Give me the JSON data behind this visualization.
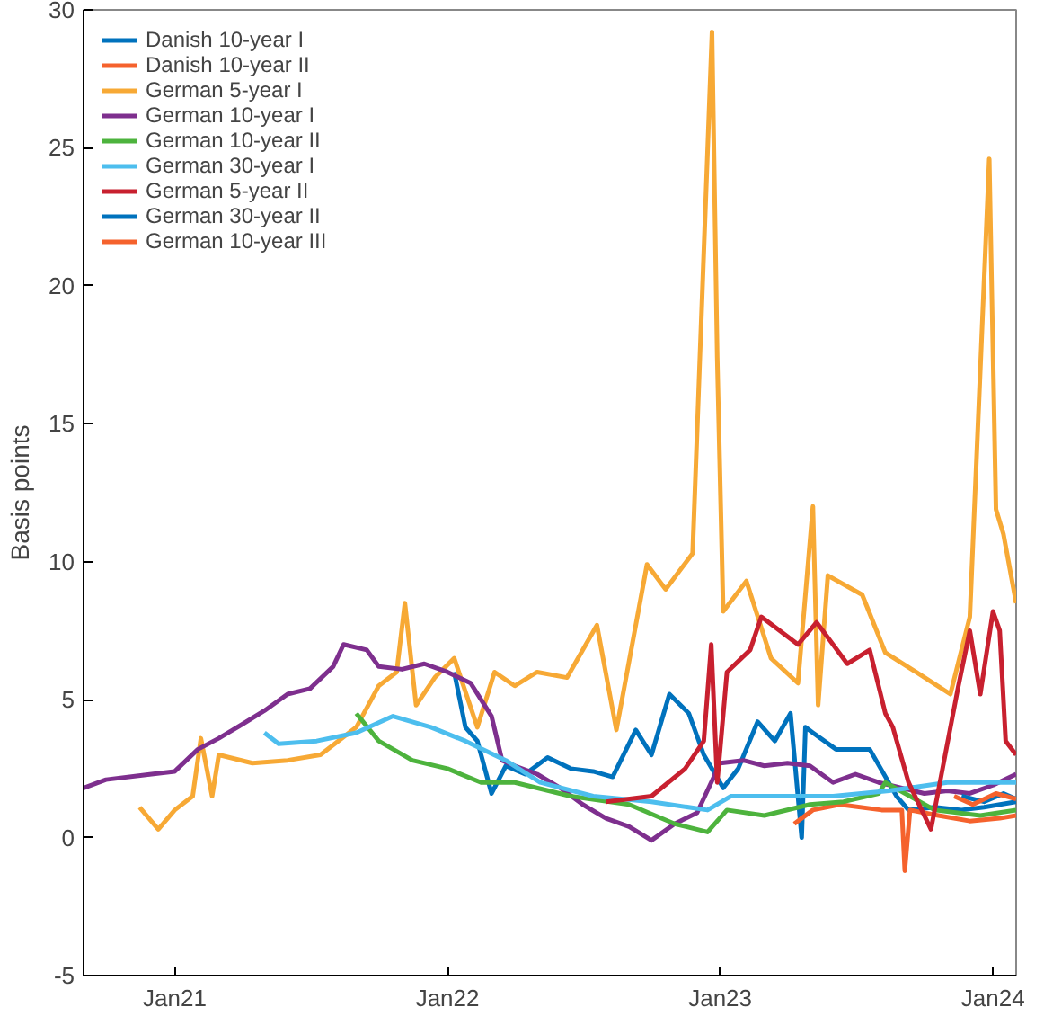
{
  "chart_data": {
    "type": "line",
    "ylabel": "Basis points",
    "xlim": [
      "2020-09-01",
      "2024-02-01"
    ],
    "ylim": [
      -5,
      30
    ],
    "yticks": [
      -5,
      0,
      5,
      10,
      15,
      20,
      25,
      30
    ],
    "xticks": [
      {
        "value": "2021-01-01",
        "label": "Jan21"
      },
      {
        "value": "2022-01-01",
        "label": "Jan22"
      },
      {
        "value": "2023-01-01",
        "label": "Jan23"
      },
      {
        "value": "2024-01-01",
        "label": "Jan24"
      }
    ],
    "grid": false,
    "legend": "top left",
    "line_style": "solid",
    "marker": "none",
    "series": [
      {
        "name": "Danish 10-year I",
        "color": "#0072bd",
        "x": [
          "2022-01-10",
          "2022-01-25",
          "2022-02-10",
          "2022-03-01",
          "2022-03-20",
          "2022-04-15",
          "2022-05-15",
          "2022-06-15",
          "2022-07-15",
          "2022-08-10",
          "2022-09-10",
          "2022-10-01",
          "2022-10-25",
          "2022-11-20",
          "2022-12-10",
          "2023-01-05",
          "2023-01-25",
          "2023-02-20",
          "2023-03-15",
          "2023-04-05",
          "2023-04-20",
          "2023-04-25",
          "2023-05-05",
          "2023-06-05",
          "2023-07-20",
          "2023-08-25",
          "2023-09-10",
          "2023-10-15",
          "2023-11-20",
          "2023-12-20",
          "2024-02-01"
        ],
        "values": [
          6.0,
          4.0,
          3.5,
          1.6,
          2.6,
          2.3,
          2.9,
          2.5,
          2.4,
          2.2,
          3.9,
          3.0,
          5.2,
          4.5,
          3.0,
          1.8,
          2.5,
          4.2,
          3.5,
          4.5,
          0.0,
          4.0,
          3.8,
          3.2,
          3.2,
          1.5,
          1.0,
          1.1,
          1.0,
          1.1,
          1.3
        ]
      },
      {
        "name": "Danish 10-year II",
        "color": "#f5622d",
        "x": [
          "2023-04-10",
          "2023-05-05",
          "2023-06-10",
          "2023-08-05",
          "2023-09-01",
          "2023-09-05",
          "2023-09-12",
          "2023-10-20",
          "2023-12-01",
          "2024-01-10",
          "2024-02-01"
        ],
        "values": [
          0.5,
          1.0,
          1.2,
          1.0,
          1.0,
          -1.2,
          1.0,
          0.8,
          0.6,
          0.7,
          0.8
        ]
      },
      {
        "name": "German 5-year I",
        "color": "#f7a935",
        "x": [
          "2020-11-15",
          "2020-12-10",
          "2021-01-01",
          "2021-01-25",
          "2021-02-05",
          "2021-02-20",
          "2021-03-01",
          "2021-04-15",
          "2021-06-01",
          "2021-07-15",
          "2021-09-01",
          "2021-10-01",
          "2021-10-25",
          "2021-11-05",
          "2021-11-20",
          "2021-12-15",
          "2022-01-10",
          "2022-02-10",
          "2022-03-05",
          "2022-04-01",
          "2022-05-01",
          "2022-06-10",
          "2022-07-20",
          "2022-08-15",
          "2022-09-25",
          "2022-10-20",
          "2022-11-25",
          "2022-12-21",
          "2022-12-28",
          "2023-01-05",
          "2023-02-05",
          "2023-03-10",
          "2023-04-15",
          "2023-05-05",
          "2023-05-12",
          "2023-05-25",
          "2023-07-10",
          "2023-08-10",
          "2023-09-20",
          "2023-11-05",
          "2023-12-01",
          "2023-12-27",
          "2024-01-05",
          "2024-01-15",
          "2024-02-01"
        ],
        "values": [
          1.1,
          0.3,
          1.0,
          1.5,
          3.6,
          1.5,
          3.0,
          2.7,
          2.8,
          3.0,
          4.0,
          5.5,
          6.0,
          8.5,
          4.8,
          5.8,
          6.5,
          4.0,
          6.0,
          5.5,
          6.0,
          5.8,
          7.7,
          3.9,
          9.9,
          9.0,
          10.3,
          29.2,
          17.4,
          8.2,
          9.3,
          6.5,
          5.6,
          12.0,
          4.8,
          9.5,
          8.8,
          6.7,
          6.0,
          5.2,
          8.0,
          24.6,
          11.9,
          11.0,
          8.5
        ]
      },
      {
        "name": "German 10-year I",
        "color": "#7e2f8e",
        "x": [
          "2020-09-01",
          "2020-10-01",
          "2020-12-01",
          "2021-01-01",
          "2021-02-01",
          "2021-03-01",
          "2021-04-01",
          "2021-05-01",
          "2021-06-01",
          "2021-07-01",
          "2021-08-01",
          "2021-08-15",
          "2021-09-15",
          "2021-10-01",
          "2021-11-01",
          "2021-12-01",
          "2022-01-01",
          "2022-02-01",
          "2022-03-01",
          "2022-03-15",
          "2022-04-01",
          "2022-05-01",
          "2022-06-01",
          "2022-07-01",
          "2022-08-01",
          "2022-09-01",
          "2022-10-01",
          "2022-11-01",
          "2022-12-01",
          "2023-01-01",
          "2023-02-01",
          "2023-03-01",
          "2023-04-01",
          "2023-05-01",
          "2023-06-01",
          "2023-07-01",
          "2023-08-01",
          "2023-09-01",
          "2023-10-01",
          "2023-11-01",
          "2023-12-01",
          "2024-01-01",
          "2024-02-01"
        ],
        "values": [
          1.8,
          2.1,
          2.3,
          2.4,
          3.2,
          3.6,
          4.1,
          4.6,
          5.2,
          5.4,
          6.2,
          7.0,
          6.8,
          6.2,
          6.1,
          6.3,
          6.0,
          5.6,
          4.4,
          2.8,
          2.6,
          2.3,
          1.8,
          1.2,
          0.7,
          0.4,
          -0.1,
          0.5,
          0.9,
          2.7,
          2.8,
          2.6,
          2.7,
          2.6,
          2.0,
          2.3,
          2.0,
          1.8,
          1.6,
          1.7,
          1.6,
          1.9,
          2.3
        ]
      },
      {
        "name": "German 10-year II",
        "color": "#4db33d",
        "x": [
          "2021-09-01",
          "2021-10-01",
          "2021-11-15",
          "2022-01-01",
          "2022-02-15",
          "2022-04-01",
          "2022-06-15",
          "2022-09-01",
          "2022-11-01",
          "2022-12-15",
          "2023-01-10",
          "2023-03-01",
          "2023-05-01",
          "2023-06-15",
          "2023-08-01",
          "2023-08-10",
          "2023-10-15",
          "2023-12-15",
          "2024-02-01"
        ],
        "values": [
          4.5,
          3.5,
          2.8,
          2.5,
          2.0,
          2.0,
          1.5,
          1.2,
          0.5,
          0.2,
          1.0,
          0.8,
          1.2,
          1.3,
          1.6,
          2.0,
          1.0,
          0.8,
          1.0
        ]
      },
      {
        "name": "German 30-year I",
        "color": "#4dbeee",
        "x": [
          "2021-05-01",
          "2021-05-20",
          "2021-07-10",
          "2021-09-01",
          "2021-10-20",
          "2021-12-10",
          "2022-01-25",
          "2022-03-20",
          "2022-05-05",
          "2022-07-15",
          "2022-10-01",
          "2022-12-15",
          "2023-01-15",
          "2023-03-20",
          "2023-06-01",
          "2023-08-15",
          "2023-11-01",
          "2024-02-01"
        ],
        "values": [
          3.8,
          3.4,
          3.5,
          3.8,
          4.4,
          4.0,
          3.5,
          2.8,
          2.0,
          1.5,
          1.3,
          1.0,
          1.5,
          1.5,
          1.5,
          1.7,
          2.0,
          2.0
        ]
      },
      {
        "name": "German 5-year II",
        "color": "#c8202f",
        "x": [
          "2022-08-01",
          "2022-10-01",
          "2022-11-15",
          "2022-12-10",
          "2022-12-20",
          "2022-12-28",
          "2023-01-10",
          "2023-02-10",
          "2023-02-25",
          "2023-04-15",
          "2023-05-10",
          "2023-06-20",
          "2023-07-20",
          "2023-08-10",
          "2023-08-20",
          "2023-09-10",
          "2023-10-10",
          "2023-11-15",
          "2023-12-01",
          "2023-12-15",
          "2024-01-01",
          "2024-01-10",
          "2024-01-18",
          "2024-02-01"
        ],
        "values": [
          1.3,
          1.5,
          2.5,
          3.5,
          7.0,
          2.0,
          6.0,
          6.8,
          8.0,
          7.0,
          7.8,
          6.3,
          6.8,
          4.5,
          4.0,
          2.0,
          0.3,
          5.4,
          7.5,
          5.2,
          8.2,
          7.5,
          3.5,
          3.0
        ]
      },
      {
        "name": "German 30-year II",
        "color": "#0072bd",
        "x": [
          "2023-11-20",
          "2023-12-20",
          "2024-01-15",
          "2024-02-01"
        ],
        "values": [
          1.5,
          1.3,
          1.6,
          1.4
        ]
      },
      {
        "name": "German 10-year III",
        "color": "#f5622d",
        "x": [
          "2023-11-10",
          "2023-12-05",
          "2024-01-05",
          "2024-02-01"
        ],
        "values": [
          1.5,
          1.2,
          1.6,
          1.4
        ]
      }
    ]
  }
}
